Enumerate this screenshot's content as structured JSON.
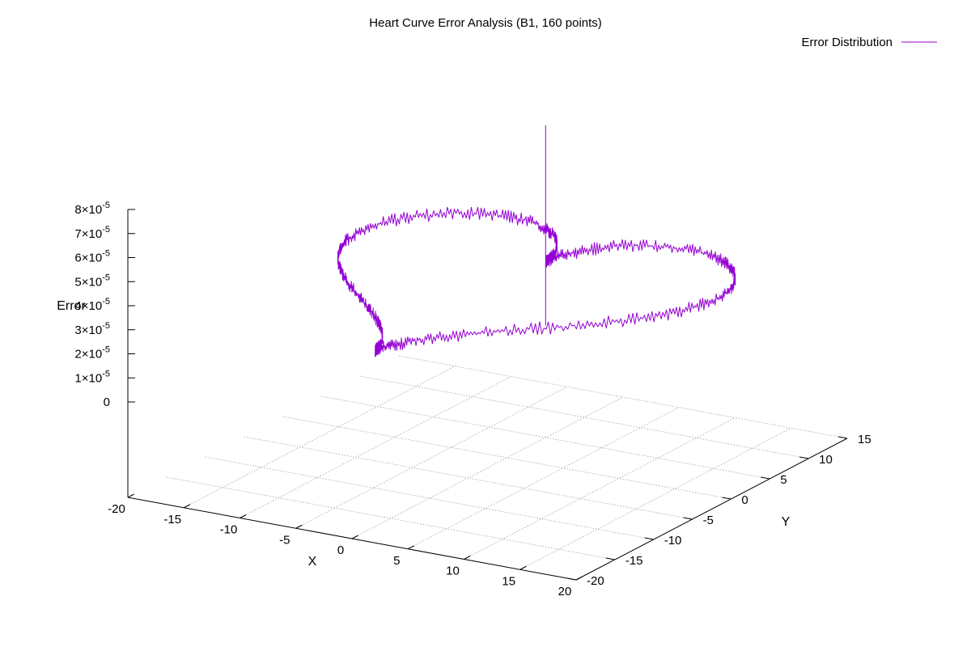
{
  "chart_data": {
    "type": "line",
    "title": "Heart Curve Error Analysis (B1, 160 points)",
    "xlabel": "X",
    "ylabel": "Y",
    "zlabel": "Error",
    "xlim": [
      -20,
      20
    ],
    "ylim": [
      -20,
      15
    ],
    "zlim": [
      0,
      8e-05
    ],
    "x_ticks": [
      "-20",
      "-15",
      "-10",
      "-5",
      "0",
      "5",
      "10",
      "15",
      "20"
    ],
    "y_ticks": [
      "-20",
      "-15",
      "-10",
      "-5",
      "0",
      "5",
      "10",
      "15"
    ],
    "z_ticks": [
      {
        "mantissa": "8",
        "exponent": "-5"
      },
      {
        "mantissa": "7",
        "exponent": "-5"
      },
      {
        "mantissa": "6",
        "exponent": "-5"
      },
      {
        "mantissa": "5",
        "exponent": "-5"
      },
      {
        "mantissa": "4",
        "exponent": "-5"
      },
      {
        "mantissa": "3",
        "exponent": "-5"
      },
      {
        "mantissa": "2",
        "exponent": "-5"
      },
      {
        "mantissa": "1",
        "exponent": "-5"
      },
      {
        "mantissa": "0",
        "exponent": ""
      }
    ],
    "grid": true,
    "legend_position": "top-right",
    "series": [
      {
        "name": "Error Distribution",
        "color": "#9400d3",
        "curve": "heart: x=16 sin^3 t, y=13 cos t - 5 cos 2t - 2 cos 3t - cos 4t",
        "points": 160,
        "typical_error": 3.5e-05,
        "spike_error": 9e-05
      }
    ]
  }
}
